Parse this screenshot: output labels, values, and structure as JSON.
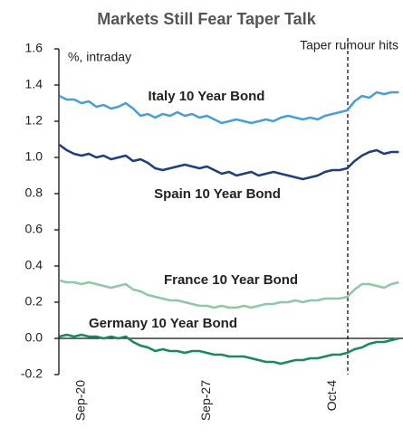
{
  "chart_data": {
    "type": "line",
    "title": "Markets Still Fear Taper Talk",
    "y_axis_label": "%, intraday",
    "annotation": "Taper rumour hits",
    "categories": [
      null,
      null,
      null,
      "Sep-20",
      null,
      null,
      null,
      null,
      null,
      null,
      null,
      null,
      null,
      null,
      null,
      null,
      null,
      null,
      null,
      null,
      "Sep-27",
      null,
      null,
      null,
      null,
      null,
      null,
      null,
      null,
      null,
      null,
      null,
      null,
      null,
      null,
      null,
      null,
      "Oct-4",
      null,
      null,
      null,
      null,
      null,
      null,
      null,
      null,
      null
    ],
    "ylim": [
      -0.2,
      1.6
    ],
    "yticks": [
      -0.2,
      {
        "value": 0,
        "label": "0.0"
      },
      0.2,
      0.4,
      0.6,
      0.8,
      {
        "value": 1,
        "label": "1.0"
      },
      1.2,
      1.4,
      1.6
    ],
    "series": [
      {
        "name": "Italy 10 Year Bond",
        "color": "#4a9fd4",
        "values": [
          1.34,
          1.32,
          1.32,
          1.3,
          1.31,
          1.28,
          1.29,
          1.27,
          1.28,
          1.3,
          1.27,
          1.23,
          1.24,
          1.22,
          1.24,
          1.23,
          1.25,
          1.23,
          1.24,
          1.22,
          1.23,
          1.21,
          1.19,
          1.2,
          1.21,
          1.2,
          1.19,
          1.2,
          1.21,
          1.2,
          1.22,
          1.23,
          1.22,
          1.21,
          1.22,
          1.21,
          1.23,
          1.24,
          1.25,
          1.26,
          1.31,
          1.34,
          1.33,
          1.36,
          1.35,
          1.36,
          1.36
        ]
      },
      {
        "name": "Spain 10 Year Bond",
        "color": "#1f3f7a",
        "values": [
          1.07,
          1.04,
          1.02,
          1.01,
          1.02,
          1.0,
          1.01,
          0.99,
          1.0,
          1.01,
          0.98,
          0.99,
          0.97,
          0.94,
          0.93,
          0.94,
          0.95,
          0.96,
          0.95,
          0.94,
          0.95,
          0.93,
          0.91,
          0.92,
          0.9,
          0.91,
          0.92,
          0.9,
          0.91,
          0.92,
          0.91,
          0.9,
          0.89,
          0.88,
          0.89,
          0.9,
          0.92,
          0.93,
          0.93,
          0.94,
          0.98,
          1.01,
          1.03,
          1.04,
          1.02,
          1.03,
          1.03
        ]
      },
      {
        "name": "France 10 Year Bond",
        "color": "#8fc8a6",
        "values": [
          0.32,
          0.31,
          0.31,
          0.3,
          0.31,
          0.3,
          0.29,
          0.28,
          0.29,
          0.3,
          0.27,
          0.26,
          0.24,
          0.23,
          0.22,
          0.21,
          0.21,
          0.2,
          0.19,
          0.18,
          0.18,
          0.17,
          0.18,
          0.17,
          0.17,
          0.18,
          0.17,
          0.18,
          0.19,
          0.19,
          0.2,
          0.2,
          0.21,
          0.2,
          0.21,
          0.21,
          0.22,
          0.22,
          0.22,
          0.23,
          0.27,
          0.3,
          0.3,
          0.29,
          0.28,
          0.3,
          0.31
        ]
      },
      {
        "name": "Germany 10 Year Bond",
        "color": "#1a8a5a",
        "values": [
          0.01,
          0.02,
          0.01,
          0.02,
          0.01,
          0.01,
          0.0,
          0.01,
          0.0,
          0.01,
          -0.02,
          -0.04,
          -0.05,
          -0.07,
          -0.06,
          -0.07,
          -0.07,
          -0.08,
          -0.07,
          -0.07,
          -0.08,
          -0.09,
          -0.09,
          -0.1,
          -0.1,
          -0.1,
          -0.11,
          -0.12,
          -0.13,
          -0.13,
          -0.14,
          -0.13,
          -0.12,
          -0.12,
          -0.11,
          -0.11,
          -0.1,
          -0.09,
          -0.09,
          -0.08,
          -0.06,
          -0.05,
          -0.03,
          -0.02,
          -0.02,
          -0.01,
          0.0
        ]
      }
    ]
  }
}
